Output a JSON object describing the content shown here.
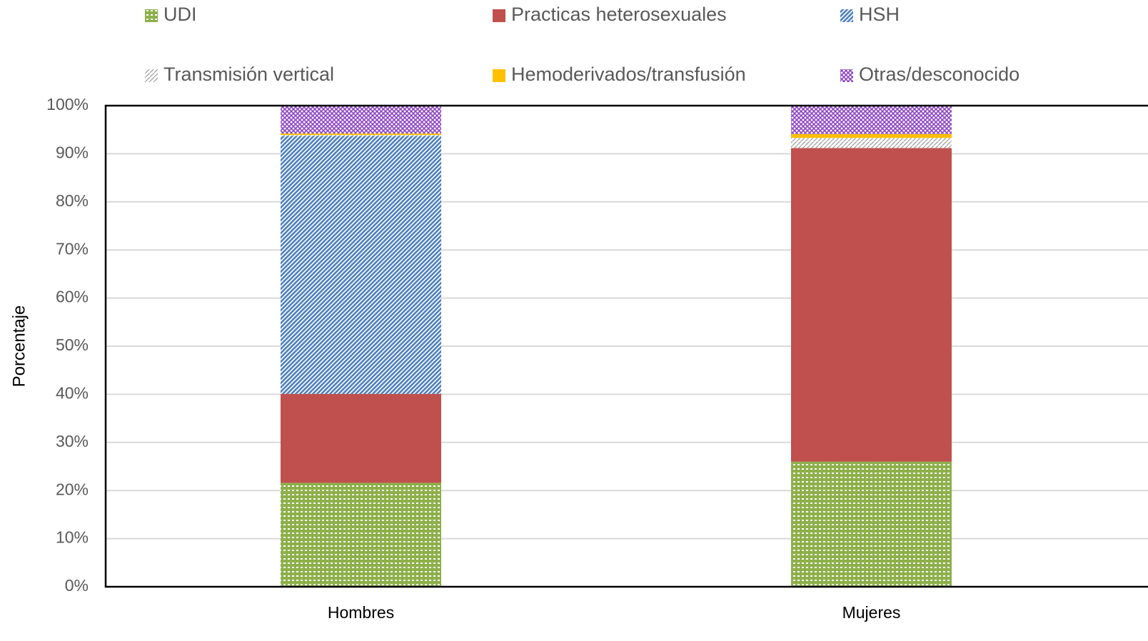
{
  "chart_data": {
    "type": "stacked_bar",
    "y_label": "Porcentaje",
    "categories": [
      "Hombres",
      "Mujeres"
    ],
    "series": [
      {
        "name": "UDI",
        "color": "#8db04a",
        "values": [
          21.6,
          26.0
        ]
      },
      {
        "name": "Practicas heterosexuales",
        "color": "#c0504d",
        "values": [
          18.5,
          65.2
        ]
      },
      {
        "name": "HSH",
        "color": "#4f81bd",
        "values": [
          53.6,
          0
        ]
      },
      {
        "name": "Transmisión vertical",
        "color": "#9a9a9a",
        "values": [
          0.2,
          2.1
        ]
      },
      {
        "name": "Hemoderivados/transfusión",
        "color": "#ffc000",
        "values": [
          0.3,
          0.8
        ]
      },
      {
        "name": "Otras/desconocido",
        "color": "#8e44c4",
        "values": [
          5.8,
          5.9
        ]
      }
    ],
    "ylim": [
      0,
      100
    ],
    "yticks": [
      {
        "value": 0,
        "label": "0%"
      },
      {
        "value": 10,
        "label": "10%"
      },
      {
        "value": 20,
        "label": "20%"
      },
      {
        "value": 30,
        "label": "30%"
      },
      {
        "value": 40,
        "label": "40%"
      },
      {
        "value": 50,
        "label": "50%"
      },
      {
        "value": 60,
        "label": "60%"
      },
      {
        "value": 70,
        "label": "70%"
      },
      {
        "value": 80,
        "label": "80%"
      },
      {
        "value": 90,
        "label": "90%"
      },
      {
        "value": 100,
        "label": "100%"
      }
    ],
    "grid": true
  }
}
